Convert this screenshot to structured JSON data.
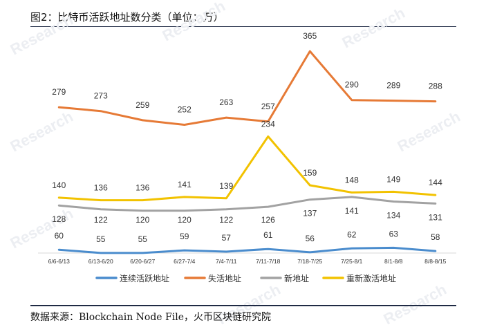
{
  "title": "图2：比特币活跃地址数分类（单位：万）",
  "source": "数据来源：Blockchain Node File，火币区块链研究院",
  "watermark": {
    "text": "Research",
    "color": "#eceef2"
  },
  "chart_data": {
    "type": "line",
    "categories": [
      "6/6-6/13",
      "6/13-6/20",
      "6/20-6/27",
      "6/27-7/4",
      "7/4-7/11",
      "7/11-7/18",
      "7/18-7/25",
      "7/25-8/1",
      "8/1-8/8",
      "8/8-8/15"
    ],
    "series": [
      {
        "name": "连续活跃地址",
        "color": "#4a8ccd",
        "values": [
          60,
          55,
          55,
          59,
          57,
          61,
          56,
          62,
          63,
          58
        ]
      },
      {
        "name": "失活地址",
        "color": "#e67a36",
        "values": [
          279,
          273,
          259,
          252,
          263,
          257,
          365,
          290,
          289,
          288
        ]
      },
      {
        "name": "新地址",
        "color": "#a2a2a2",
        "values": [
          128,
          122,
          120,
          120,
          122,
          126,
          137,
          141,
          134,
          131
        ]
      },
      {
        "name": "重新激活地址",
        "color": "#f2c200",
        "values": [
          140,
          136,
          136,
          141,
          139,
          234,
          159,
          148,
          149,
          144
        ]
      }
    ],
    "ylim": [
      40,
      380
    ],
    "xlabel": "",
    "ylabel": "",
    "legend_position": "bottom",
    "grid": false
  }
}
